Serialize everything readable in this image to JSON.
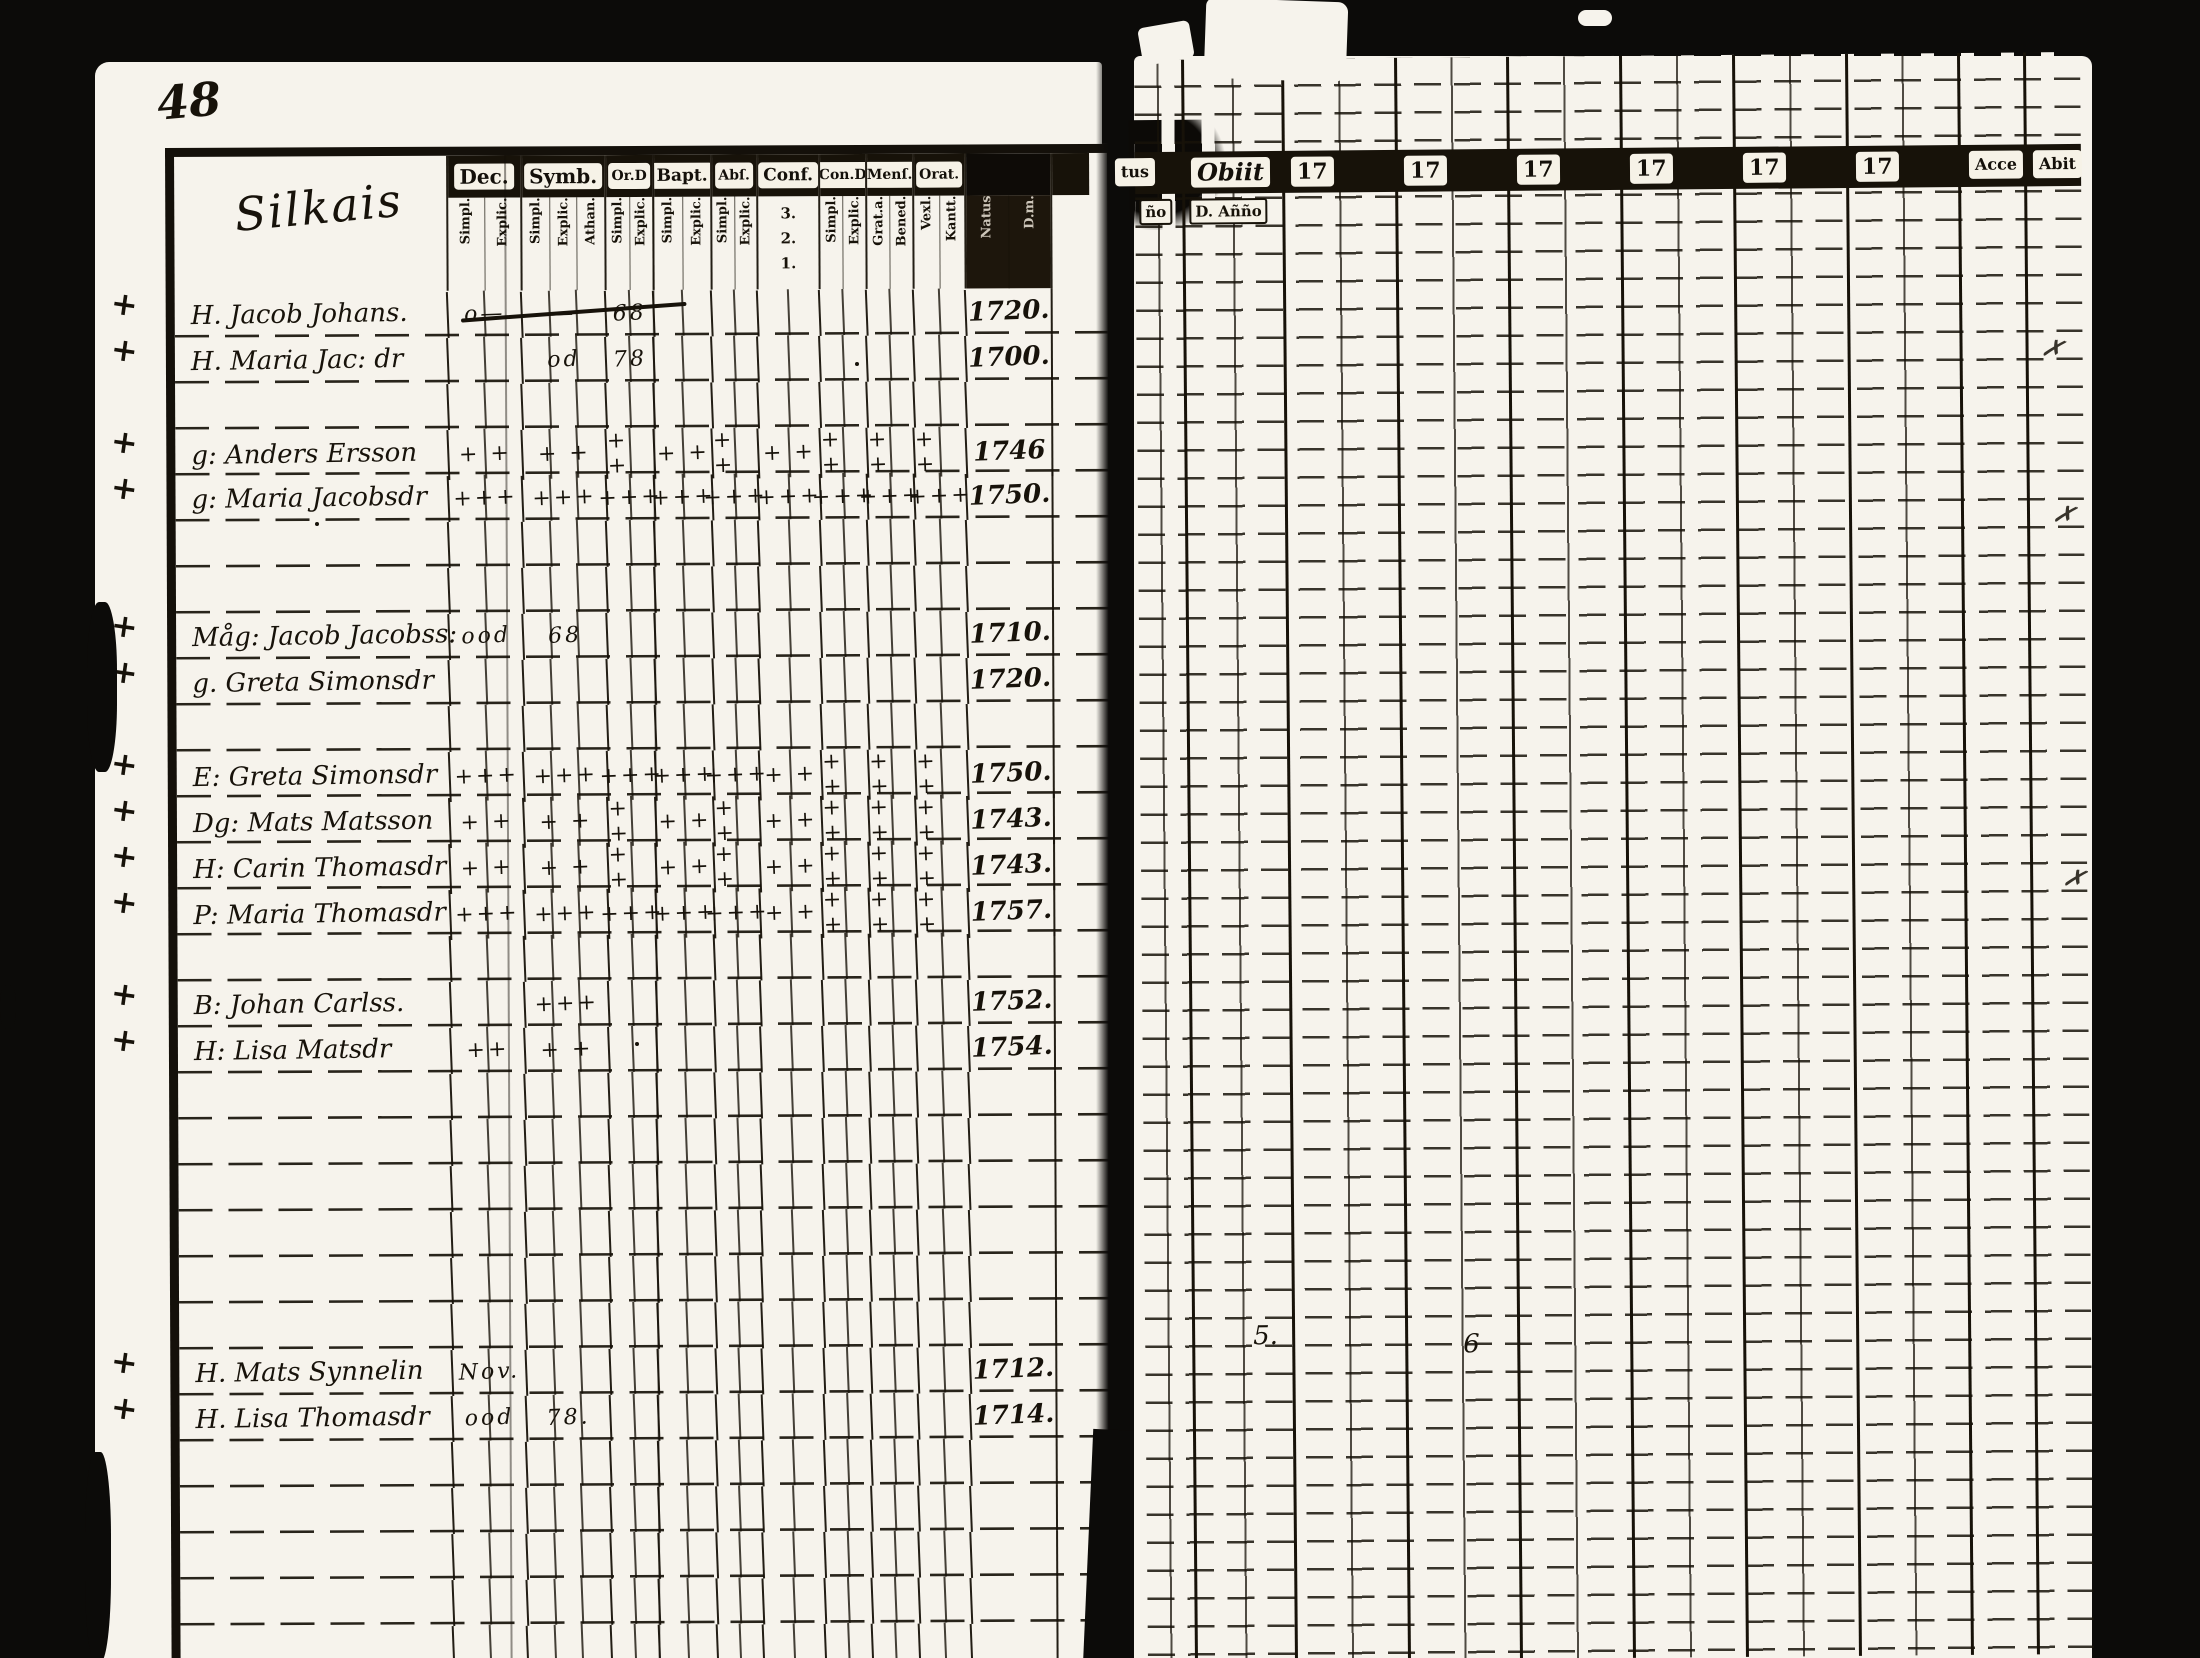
{
  "page": {
    "number": "48",
    "village_title": "Silkais"
  },
  "colors": {
    "ink": "#171209",
    "paper": "#f6f3ec"
  },
  "left_table": {
    "columns": [
      {
        "label": "Dec.",
        "subs": [
          "Simpl.",
          "Explic."
        ]
      },
      {
        "label": "Symb.",
        "subs": [
          "Simpl.",
          "Explic.",
          "Athan."
        ]
      },
      {
        "label": "Or.D",
        "subs": [
          "Simpl.",
          "Explic."
        ]
      },
      {
        "label": "Bapt.",
        "subs": [
          "Simpl.",
          "Explic."
        ]
      },
      {
        "label": "Abſ.",
        "subs": [
          "Simpl.",
          "Explic."
        ]
      },
      {
        "label": "Conf.",
        "subs": [
          "3.",
          "2.",
          "1."
        ],
        "stacked": true
      },
      {
        "label": "Con.D",
        "subs": [
          "Simpl.",
          "Explic."
        ]
      },
      {
        "label": "Menſ.",
        "subs": [
          "Grat.a.",
          "Bened."
        ]
      },
      {
        "label": "Orat.",
        "subs": [
          "Vexl.",
          "Kantt."
        ]
      },
      {
        "label": "",
        "subs": [
          "Natus",
          "D.m."
        ],
        "dark": true
      }
    ],
    "rows": [
      {
        "m": "+",
        "n": "H. Jacob Johans.",
        "mk": [
          "o—",
          "—",
          "68",
          "",
          "",
          "",
          "",
          "",
          ""
        ],
        "y": "1720."
      },
      {
        "m": "+",
        "n": "H. Maria Jac: dr",
        "mk": [
          "",
          "od",
          "78",
          "",
          "",
          "",
          "",
          "",
          ""
        ],
        "y": "1700."
      },
      {
        "m": "",
        "n": "",
        "mk": [],
        "y": ""
      },
      {
        "m": "+",
        "n": "g: Anders Ersson",
        "mk": [
          "+ +",
          "+ +",
          "+ +",
          "+ +",
          "+ +",
          "+ +",
          "+ +",
          "+ +",
          "+ +"
        ],
        "y": "1746"
      },
      {
        "m": "+",
        "n": "g: Maria Jacobsdr",
        "mk": [
          "+++",
          "+++",
          "+++",
          "+++",
          "+++",
          "+++",
          "+++",
          "+++",
          "+++"
        ],
        "y": "1750."
      },
      {
        "m": "",
        "n": "",
        "mk": [],
        "y": ""
      },
      {
        "m": "",
        "n": "",
        "mk": [],
        "y": ""
      },
      {
        "m": "+",
        "n": "Måg: Jacob Jacobss:",
        "mk": [
          "ood",
          "68",
          "",
          "",
          "",
          "",
          "",
          "",
          ""
        ],
        "y": "1710."
      },
      {
        "m": "+",
        "n": "g. Greta Simonsdr",
        "mk": [],
        "y": "1720."
      },
      {
        "m": "",
        "n": "",
        "mk": [],
        "y": ""
      },
      {
        "m": "+",
        "n": "E: Greta Simonsdr",
        "mk": [
          "+++",
          "+++",
          "+++",
          "+++",
          "+++",
          "+ +",
          "+ +",
          "+ +",
          "+ +"
        ],
        "y": "1750."
      },
      {
        "m": "+",
        "n": "Dg: Mats Matsson",
        "mk": [
          "+ +",
          "+ +",
          "+ +",
          "+ +",
          "+ +",
          "+ +",
          "+ +",
          "+ +",
          "+ +"
        ],
        "y": "1743."
      },
      {
        "m": "+",
        "n": "H: Carin Thomasdr",
        "mk": [
          "+ +",
          "+ +",
          "+ +",
          "+ +",
          "+ +",
          "+ +",
          "+ +",
          "+ +",
          "+ +"
        ],
        "y": "1743."
      },
      {
        "m": "+",
        "n": "P: Maria Thomasdr",
        "mk": [
          "+++",
          "+++",
          "+++",
          "+++",
          "+++",
          "+ +",
          "+ +",
          "+ +",
          "+ +"
        ],
        "y": "1757."
      },
      {
        "m": "",
        "n": "",
        "mk": [],
        "y": ""
      },
      {
        "m": "+",
        "n": "B: Johan Carlss.",
        "mk": [
          "",
          "+++",
          "",
          "",
          "",
          "",
          "",
          "",
          ""
        ],
        "y": "1752."
      },
      {
        "m": "+",
        "n": "H: Lisa Matsdr",
        "mk": [
          "++",
          "+ +",
          "",
          "",
          "",
          "",
          "",
          "",
          ""
        ],
        "y": "1754."
      },
      {
        "m": "",
        "n": "",
        "mk": [],
        "y": ""
      },
      {
        "m": "",
        "n": "",
        "mk": [],
        "y": ""
      },
      {
        "m": "",
        "n": "",
        "mk": [],
        "y": ""
      },
      {
        "m": "",
        "n": "",
        "mk": [],
        "y": ""
      },
      {
        "m": "",
        "n": "",
        "mk": [],
        "y": ""
      },
      {
        "m": "",
        "n": "",
        "mk": [],
        "y": ""
      },
      {
        "m": "+",
        "n": "H. Mats Synnelin",
        "mk": [
          "Nov.",
          "",
          "",
          "",
          "",
          "",
          "",
          "",
          ""
        ],
        "y": "1712."
      },
      {
        "m": "+",
        "n": "H. Lisa Thomasdr",
        "mk": [
          "ood",
          "78.",
          "",
          "",
          "",
          "",
          "",
          "",
          ""
        ],
        "y": "1714."
      },
      {
        "m": "",
        "n": "",
        "mk": [],
        "y": ""
      },
      {
        "m": "",
        "n": "",
        "mk": [],
        "y": ""
      },
      {
        "m": "",
        "n": "",
        "mk": [],
        "y": ""
      },
      {
        "m": "",
        "n": "",
        "mk": [],
        "y": ""
      },
      {
        "m": "",
        "n": "",
        "mk": [],
        "y": ""
      }
    ]
  },
  "right_table": {
    "headers": [
      "tus",
      "Obiit",
      "17",
      "17",
      "17",
      "17",
      "17",
      "17",
      "Acce",
      "Abit"
    ],
    "subheaders": [
      "ño",
      "D. Añño"
    ],
    "annotations": {
      "note1": "5.",
      "note2": "6"
    }
  }
}
